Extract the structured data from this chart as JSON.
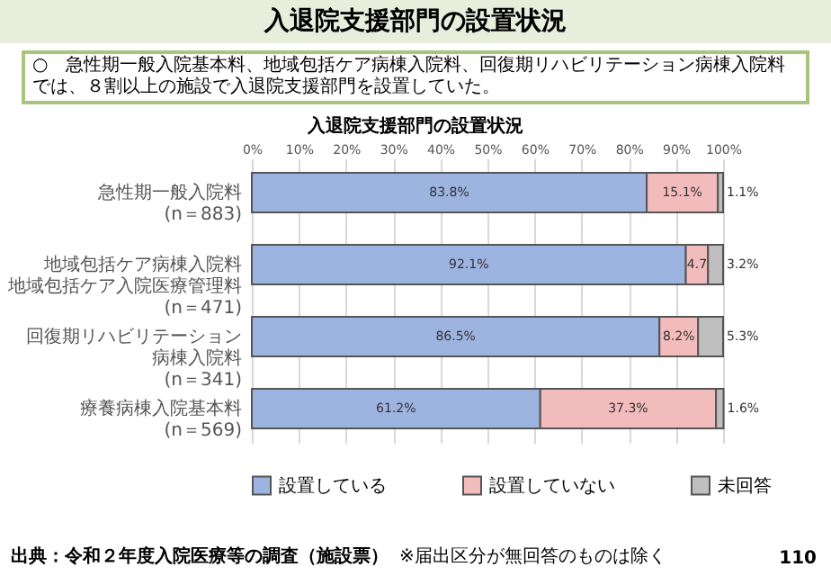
{
  "chart_data": {
    "type": "bar",
    "orientation": "horizontal",
    "stacked": true,
    "title": "入退院支援部門の設置状況",
    "subtitle": "○　急性期一般入院基本料、地域包括ケア病棟入院料、回復期リハビリテーション病棟入院料では、８割以上の施設で入退院支援部門を設置していた。",
    "annotations": [
      "入退院支援部門の設置状況",
      "出典：令和２年度入院医療等の調査（施設票）",
      "※届出区分が無回答のものは除く",
      "110"
    ],
    "categories": [
      "急性期一般入院料(n＝883)",
      "地域包括ケア病棟入院料地域包括ケア入院医療管理料(n＝471)",
      "回復期リハビリテーション病棟入院料(n＝341)",
      "療養病棟入院基本料(n＝569)"
    ],
    "series": [
      {
        "name": "設置している",
        "color": "#9db3e0",
        "values": [
          83.8,
          92.1,
          86.5,
          61.2
        ],
        "value_labels": [
          "83.8%",
          "92.1%",
          "86.5%",
          "61.2%"
        ]
      },
      {
        "name": "設置していない",
        "color": "#f3bcbc",
        "values": [
          15.1,
          4.7,
          8.2,
          37.3
        ],
        "value_labels": [
          "15.1%",
          "4.7",
          "8.2%",
          "37.3%"
        ]
      },
      {
        "name": "未回答",
        "color": "#bfbfbf",
        "values": [
          1.1,
          3.2,
          5.3,
          1.6
        ],
        "value_labels": [
          "1.1%",
          "3.2%",
          "5.3%",
          "1.6%"
        ]
      }
    ],
    "xlim": [
      0,
      100
    ],
    "xticks": [
      {
        "value": 0,
        "label": "0%"
      },
      {
        "value": 10,
        "label": "10%"
      },
      {
        "value": 20,
        "label": "20%"
      },
      {
        "value": 30,
        "label": "30%"
      },
      {
        "value": 40,
        "label": "40%"
      },
      {
        "value": 50,
        "label": "50%"
      },
      {
        "value": 60,
        "label": "60%"
      },
      {
        "value": 70,
        "label": "70%"
      },
      {
        "value": 80,
        "label": "80%"
      },
      {
        "value": 90,
        "label": "90%"
      },
      {
        "value": 100,
        "label": "100%"
      }
    ],
    "grid": "x",
    "legend": "bottom"
  }
}
